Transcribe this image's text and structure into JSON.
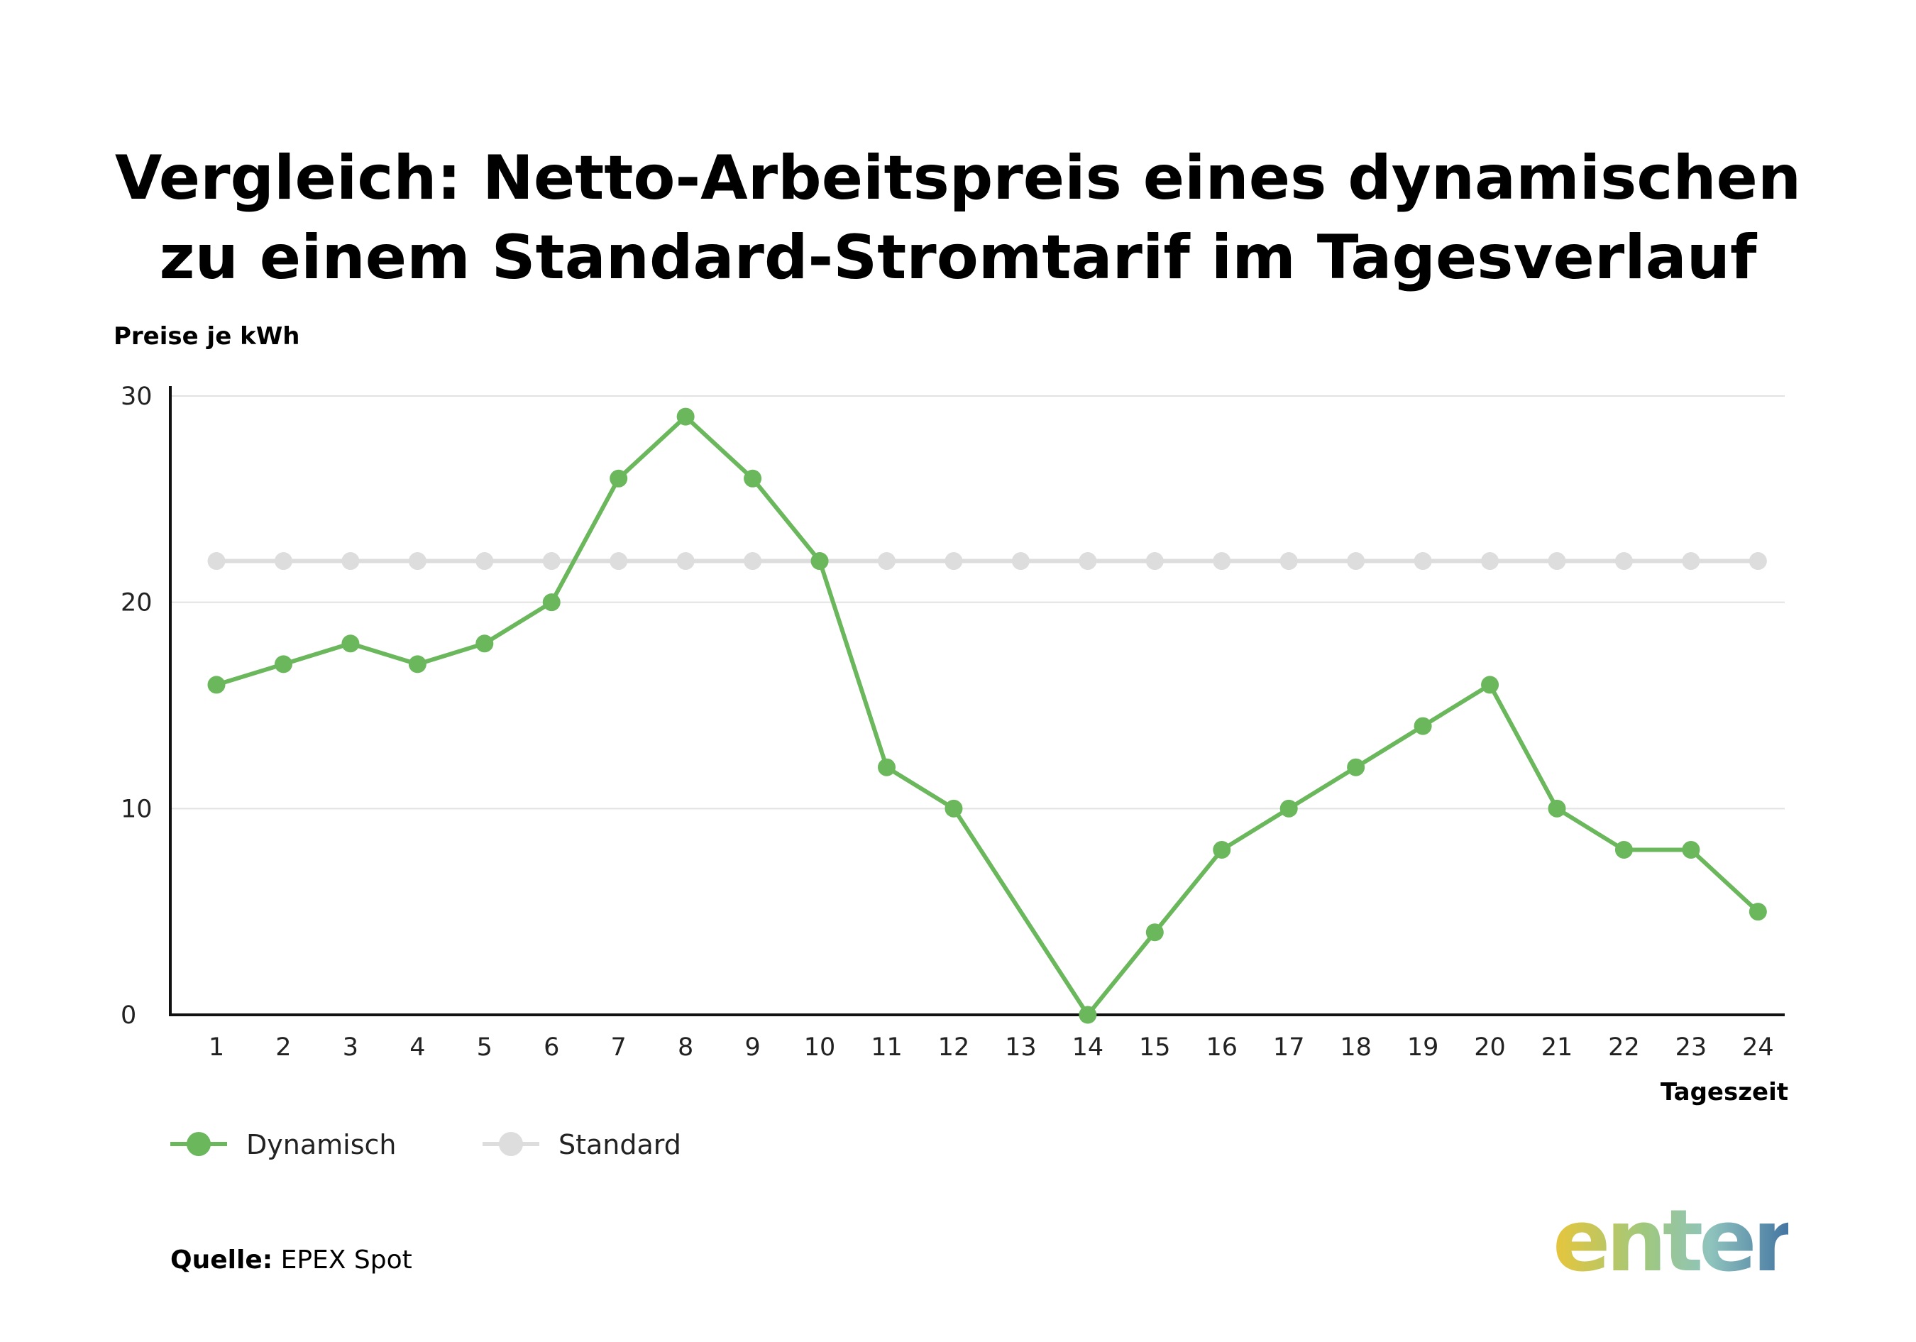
{
  "title_lines": [
    "Vergleich: Netto-Arbeitspreis eines dynamischen",
    "zu einem Standard-Stromtarif im Tagesverlauf"
  ],
  "source": {
    "label": "Quelle:",
    "value": "EPEX Spot"
  },
  "logo": {
    "text": "enter",
    "colors": [
      "#e8c53a",
      "#9fc87e",
      "#8fc4bd",
      "#3f6fa0"
    ]
  },
  "chart_data": {
    "type": "line",
    "title": "Vergleich: Netto-Arbeitspreis eines dynamischen zu einem Standard-Stromtarif im Tagesverlauf",
    "ylabel": "Preise je kWh",
    "xlabel": "Tageszeit",
    "ylim": [
      0,
      30
    ],
    "yticks": [
      0,
      10,
      20,
      30
    ],
    "grid": true,
    "legend_position": "bottom-left",
    "x": [
      1,
      2,
      3,
      4,
      5,
      6,
      7,
      8,
      9,
      10,
      11,
      12,
      13,
      14,
      15,
      16,
      17,
      18,
      19,
      20,
      21,
      22,
      23,
      24
    ],
    "series": [
      {
        "name": "Dynamisch",
        "color": "#6ab75c",
        "values": [
          16,
          17,
          18,
          17,
          18,
          20,
          26,
          29,
          26,
          22,
          12,
          10,
          null,
          0,
          4,
          8,
          10,
          12,
          14,
          16,
          10,
          8,
          8,
          5
        ]
      },
      {
        "name": "Standard",
        "color": "#dddddd",
        "values": [
          22,
          22,
          22,
          22,
          22,
          22,
          22,
          22,
          22,
          22,
          22,
          22,
          22,
          22,
          22,
          22,
          22,
          22,
          22,
          22,
          22,
          22,
          22,
          22
        ]
      }
    ]
  }
}
